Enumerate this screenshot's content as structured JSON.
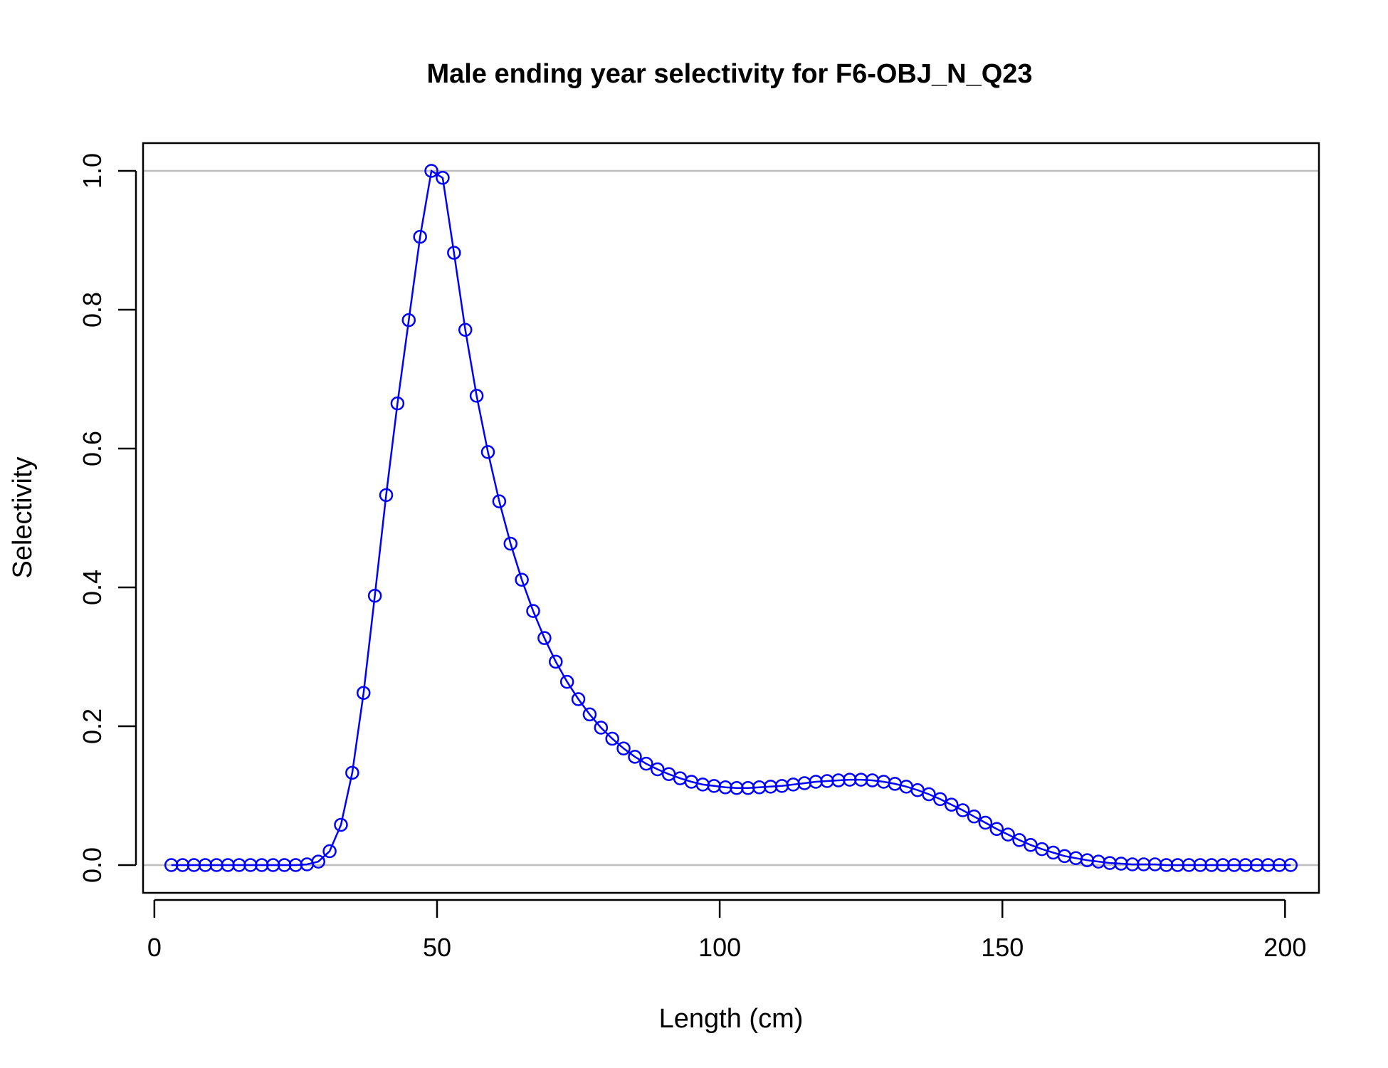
{
  "chart_data": {
    "type": "line",
    "title": "Male ending year selectivity for F6-OBJ_N_Q23",
    "xlabel": "Length (cm)",
    "ylabel": "Selectivity",
    "xlim": [
      -2,
      206
    ],
    "ylim": [
      -0.04,
      1.04
    ],
    "xticks": [
      0,
      50,
      100,
      150,
      200
    ],
    "xtick_labels": [
      "0",
      "50",
      "100",
      "150",
      "200"
    ],
    "yticks": [
      0.0,
      0.2,
      0.4,
      0.6,
      0.8,
      1.0
    ],
    "ytick_labels": [
      "0.0",
      "0.2",
      "0.4",
      "0.6",
      "0.8",
      "1.0"
    ],
    "hlines": [
      0,
      1
    ],
    "hline_color": "#bebebe",
    "series_color": "#0000ff",
    "marker": "open-circle",
    "grid": false,
    "legend": "none",
    "series": [
      {
        "x": [
          3,
          5,
          7,
          9,
          11,
          13,
          15,
          17,
          19,
          21,
          23,
          25,
          27,
          29,
          31,
          33,
          35,
          37,
          39,
          41,
          43,
          45,
          47,
          49,
          51,
          53,
          55,
          57,
          59,
          61,
          63,
          65,
          67,
          69,
          71,
          73,
          75,
          77,
          79,
          81,
          83,
          85,
          87,
          89,
          91,
          93,
          95,
          97,
          99,
          101,
          103,
          105,
          107,
          109,
          111,
          113,
          115,
          117,
          119,
          121,
          123,
          125,
          127,
          129,
          131,
          133,
          135,
          137,
          139,
          141,
          143,
          145,
          147,
          149,
          151,
          153,
          155,
          157,
          159,
          161,
          163,
          165,
          167,
          169,
          171,
          173,
          175,
          177,
          179,
          181,
          183,
          185,
          187,
          189,
          191,
          193,
          195,
          197,
          199,
          201
        ],
        "values": [
          0,
          0,
          0,
          0,
          0,
          0,
          0,
          0,
          0,
          0,
          0,
          0,
          0.001,
          0.005,
          0.02,
          0.058,
          0.133,
          0.248,
          0.388,
          0.533,
          0.665,
          0.785,
          0.905,
          1.0,
          0.99,
          0.882,
          0.771,
          0.676,
          0.595,
          0.524,
          0.463,
          0.411,
          0.366,
          0.327,
          0.293,
          0.264,
          0.239,
          0.217,
          0.198,
          0.182,
          0.168,
          0.156,
          0.146,
          0.138,
          0.131,
          0.125,
          0.12,
          0.116,
          0.114,
          0.112,
          0.111,
          0.111,
          0.112,
          0.113,
          0.114,
          0.116,
          0.118,
          0.12,
          0.121,
          0.122,
          0.123,
          0.123,
          0.122,
          0.12,
          0.117,
          0.113,
          0.108,
          0.102,
          0.095,
          0.087,
          0.079,
          0.07,
          0.061,
          0.052,
          0.044,
          0.036,
          0.029,
          0.023,
          0.018,
          0.013,
          0.01,
          0.007,
          0.005,
          0.003,
          0.002,
          0.001,
          0.001,
          0.001,
          0,
          0,
          0,
          0,
          0,
          0,
          0,
          0,
          0,
          0,
          0,
          0
        ]
      }
    ]
  }
}
